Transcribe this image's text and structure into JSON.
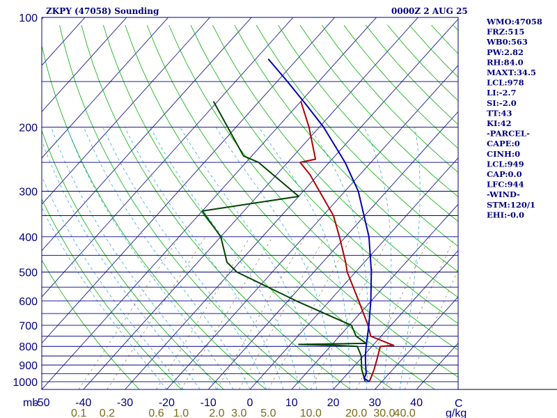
{
  "header": {
    "station_title": "ZKPY (47058) Sounding",
    "valid_time": "0000Z  2 AUG 25"
  },
  "indices": [
    "WMO:47058",
    "FRZ:515",
    "WB0:563",
    "PW:2.82",
    "RH:84.0",
    "MAXT:34.5",
    "LCL:978",
    "LI:-2.7",
    "SI:-2.0",
    "TT:43",
    "KI:42",
    "-PARCEL-",
    "CAPE:0",
    "CINH:0",
    "LCL:949",
    "CAP:0.0",
    "LFC:944",
    "-WIND-",
    "STM:120/1",
    "EHI:-0.0"
  ],
  "axes": {
    "pressure_unit": "mb",
    "mixing_ratio_unit": "g/kg",
    "temperature_unit": "C"
  },
  "colors": {
    "frame": "#000080",
    "isobar": "#000080",
    "isotherm": "#000080",
    "dry_adiabat": "#00b000",
    "moist_adiabat": "#33aadd",
    "mixing_ratio": "#8a7a40",
    "temperature": "#b00000",
    "dewpoint": "#004400",
    "parcel": "#0000b0",
    "text": "#000080",
    "mixing_ratio_text": "#7a6a10"
  },
  "chart_data": {
    "type": "line",
    "diagram": "skew-t log-p",
    "pressure_ticks": [
      100,
      200,
      300,
      400,
      500,
      600,
      700,
      800,
      900,
      1000
    ],
    "temperature_ticks": [
      -50,
      -40,
      -30,
      -20,
      -10,
      0,
      10,
      20,
      30,
      40
    ],
    "mixing_ratio_ticks": [
      "0.1",
      "0.2",
      "0.6",
      "1.0",
      "2.0",
      "3.0",
      "5.0",
      "10.0",
      "20.0",
      "30.0",
      "40.0"
    ],
    "ylim": [
      1050,
      100
    ],
    "xlim_at_surface": [
      -50,
      50
    ],
    "grid": true,
    "series": [
      {
        "key": "temperature",
        "points": [
          {
            "p": 1000,
            "t": 27.0
          },
          {
            "p": 925,
            "t": 25.5
          },
          {
            "p": 850,
            "t": 23.5
          },
          {
            "p": 800,
            "t": 22.0
          },
          {
            "p": 795,
            "t": 25.0
          },
          {
            "p": 750,
            "t": 17.5
          },
          {
            "p": 700,
            "t": 14.5
          },
          {
            "p": 600,
            "t": 7.0
          },
          {
            "p": 500,
            "t": -2.0
          },
          {
            "p": 470,
            "t": -4.5
          },
          {
            "p": 400,
            "t": -11.5
          },
          {
            "p": 350,
            "t": -17.5
          },
          {
            "p": 320,
            "t": -22.5
          },
          {
            "p": 270,
            "t": -32.0
          },
          {
            "p": 250,
            "t": -37.0
          },
          {
            "p": 245,
            "t": -34.0
          },
          {
            "p": 200,
            "t": -42.5
          },
          {
            "p": 170,
            "t": -50.0
          }
        ]
      },
      {
        "key": "dewpoint",
        "points": [
          {
            "p": 1000,
            "t": 26.0
          },
          {
            "p": 925,
            "t": 22.5
          },
          {
            "p": 850,
            "t": 19.5
          },
          {
            "p": 800,
            "t": 16.5
          },
          {
            "p": 795,
            "t": 11.0
          },
          {
            "p": 790,
            "t": 2.0
          },
          {
            "p": 785,
            "t": 18.0
          },
          {
            "p": 750,
            "t": 14.0
          },
          {
            "p": 700,
            "t": 10.5
          },
          {
            "p": 600,
            "t": -8.0
          },
          {
            "p": 500,
            "t": -28.5
          },
          {
            "p": 470,
            "t": -33.0
          },
          {
            "p": 400,
            "t": -40.0
          },
          {
            "p": 340,
            "t": -50.0
          },
          {
            "p": 310,
            "t": -30.0
          },
          {
            "p": 250,
            "t": -47.0
          },
          {
            "p": 240,
            "t": -52.0
          },
          {
            "p": 170,
            "t": -71.0
          }
        ]
      },
      {
        "key": "parcel",
        "points": [
          {
            "p": 1000,
            "t": 27.0
          },
          {
            "p": 978,
            "t": 25.0
          },
          {
            "p": 950,
            "t": 24.5
          },
          {
            "p": 900,
            "t": 22.5
          },
          {
            "p": 850,
            "t": 20.5
          },
          {
            "p": 800,
            "t": 18.6
          },
          {
            "p": 700,
            "t": 14.7
          },
          {
            "p": 600,
            "t": 9.9
          },
          {
            "p": 500,
            "t": 3.8
          },
          {
            "p": 400,
            "t": -4.4
          },
          {
            "p": 300,
            "t": -16.8
          },
          {
            "p": 250,
            "t": -26.2
          },
          {
            "p": 200,
            "t": -39.0
          },
          {
            "p": 175,
            "t": -47.5
          },
          {
            "p": 150,
            "t": -57.5
          },
          {
            "p": 130,
            "t": -67.0
          }
        ]
      }
    ]
  }
}
